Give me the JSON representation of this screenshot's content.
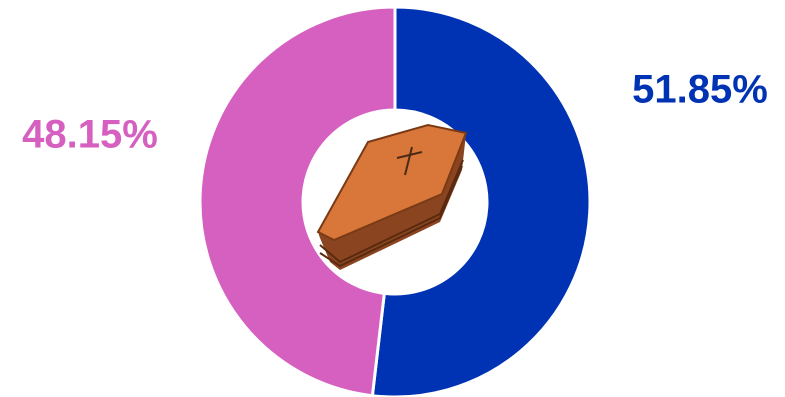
{
  "chart_data": {
    "type": "pie",
    "values": [
      51.85,
      48.15
    ],
    "value_labels": [
      "51.85%",
      "48.15%"
    ],
    "colors": [
      "#0033b3",
      "#d660c0"
    ]
  }
}
